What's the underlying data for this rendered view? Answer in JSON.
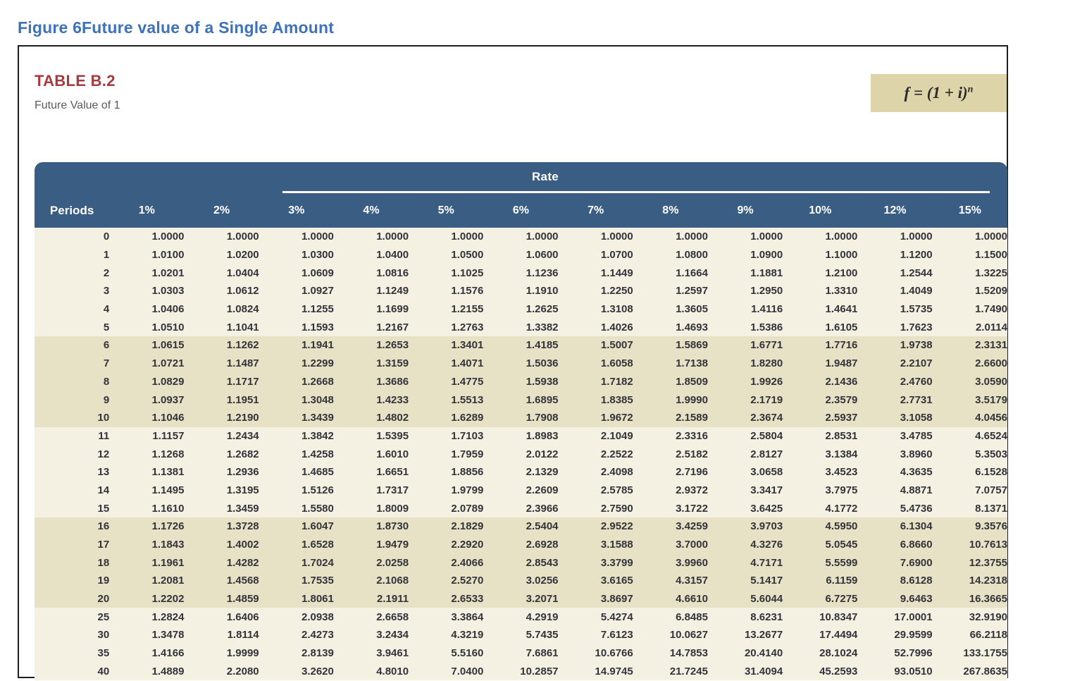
{
  "page": {
    "figure_title": "Figure 6Future value of a Single Amount"
  },
  "panel": {
    "table_label": "TABLE B.2",
    "table_subtitle": "Future Value of 1",
    "formula_base": "f = (1 + i)",
    "formula_exponent": "n"
  },
  "table": {
    "group_header": "Rate",
    "columns": [
      "Periods",
      "1%",
      "2%",
      "3%",
      "4%",
      "5%",
      "6%",
      "7%",
      "8%",
      "9%",
      "10%",
      "12%",
      "15%"
    ],
    "shaded_periods": [
      "6",
      "7",
      "8",
      "9",
      "10",
      "16",
      "17",
      "18",
      "19",
      "20"
    ],
    "rows": [
      [
        "0",
        "1.0000",
        "1.0000",
        "1.0000",
        "1.0000",
        "1.0000",
        "1.0000",
        "1.0000",
        "1.0000",
        "1.0000",
        "1.0000",
        "1.0000",
        "1.0000"
      ],
      [
        "1",
        "1.0100",
        "1.0200",
        "1.0300",
        "1.0400",
        "1.0500",
        "1.0600",
        "1.0700",
        "1.0800",
        "1.0900",
        "1.1000",
        "1.1200",
        "1.1500"
      ],
      [
        "2",
        "1.0201",
        "1.0404",
        "1.0609",
        "1.0816",
        "1.1025",
        "1.1236",
        "1.1449",
        "1.1664",
        "1.1881",
        "1.2100",
        "1.2544",
        "1.3225"
      ],
      [
        "3",
        "1.0303",
        "1.0612",
        "1.0927",
        "1.1249",
        "1.1576",
        "1.1910",
        "1.2250",
        "1.2597",
        "1.2950",
        "1.3310",
        "1.4049",
        "1.5209"
      ],
      [
        "4",
        "1.0406",
        "1.0824",
        "1.1255",
        "1.1699",
        "1.2155",
        "1.2625",
        "1.3108",
        "1.3605",
        "1.4116",
        "1.4641",
        "1.5735",
        "1.7490"
      ],
      [
        "5",
        "1.0510",
        "1.1041",
        "1.1593",
        "1.2167",
        "1.2763",
        "1.3382",
        "1.4026",
        "1.4693",
        "1.5386",
        "1.6105",
        "1.7623",
        "2.0114"
      ],
      [
        "6",
        "1.0615",
        "1.1262",
        "1.1941",
        "1.2653",
        "1.3401",
        "1.4185",
        "1.5007",
        "1.5869",
        "1.6771",
        "1.7716",
        "1.9738",
        "2.3131"
      ],
      [
        "7",
        "1.0721",
        "1.1487",
        "1.2299",
        "1.3159",
        "1.4071",
        "1.5036",
        "1.6058",
        "1.7138",
        "1.8280",
        "1.9487",
        "2.2107",
        "2.6600"
      ],
      [
        "8",
        "1.0829",
        "1.1717",
        "1.2668",
        "1.3686",
        "1.4775",
        "1.5938",
        "1.7182",
        "1.8509",
        "1.9926",
        "2.1436",
        "2.4760",
        "3.0590"
      ],
      [
        "9",
        "1.0937",
        "1.1951",
        "1.3048",
        "1.4233",
        "1.5513",
        "1.6895",
        "1.8385",
        "1.9990",
        "2.1719",
        "2.3579",
        "2.7731",
        "3.5179"
      ],
      [
        "10",
        "1.1046",
        "1.2190",
        "1.3439",
        "1.4802",
        "1.6289",
        "1.7908",
        "1.9672",
        "2.1589",
        "2.3674",
        "2.5937",
        "3.1058",
        "4.0456"
      ],
      [
        "11",
        "1.1157",
        "1.2434",
        "1.3842",
        "1.5395",
        "1.7103",
        "1.8983",
        "2.1049",
        "2.3316",
        "2.5804",
        "2.8531",
        "3.4785",
        "4.6524"
      ],
      [
        "12",
        "1.1268",
        "1.2682",
        "1.4258",
        "1.6010",
        "1.7959",
        "2.0122",
        "2.2522",
        "2.5182",
        "2.8127",
        "3.1384",
        "3.8960",
        "5.3503"
      ],
      [
        "13",
        "1.1381",
        "1.2936",
        "1.4685",
        "1.6651",
        "1.8856",
        "2.1329",
        "2.4098",
        "2.7196",
        "3.0658",
        "3.4523",
        "4.3635",
        "6.1528"
      ],
      [
        "14",
        "1.1495",
        "1.3195",
        "1.5126",
        "1.7317",
        "1.9799",
        "2.2609",
        "2.5785",
        "2.9372",
        "3.3417",
        "3.7975",
        "4.8871",
        "7.0757"
      ],
      [
        "15",
        "1.1610",
        "1.3459",
        "1.5580",
        "1.8009",
        "2.0789",
        "2.3966",
        "2.7590",
        "3.1722",
        "3.6425",
        "4.1772",
        "5.4736",
        "8.1371"
      ],
      [
        "16",
        "1.1726",
        "1.3728",
        "1.6047",
        "1.8730",
        "2.1829",
        "2.5404",
        "2.9522",
        "3.4259",
        "3.9703",
        "4.5950",
        "6.1304",
        "9.3576"
      ],
      [
        "17",
        "1.1843",
        "1.4002",
        "1.6528",
        "1.9479",
        "2.2920",
        "2.6928",
        "3.1588",
        "3.7000",
        "4.3276",
        "5.0545",
        "6.8660",
        "10.7613"
      ],
      [
        "18",
        "1.1961",
        "1.4282",
        "1.7024",
        "2.0258",
        "2.4066",
        "2.8543",
        "3.3799",
        "3.9960",
        "4.7171",
        "5.5599",
        "7.6900",
        "12.3755"
      ],
      [
        "19",
        "1.2081",
        "1.4568",
        "1.7535",
        "2.1068",
        "2.5270",
        "3.0256",
        "3.6165",
        "4.3157",
        "5.1417",
        "6.1159",
        "8.6128",
        "14.2318"
      ],
      [
        "20",
        "1.2202",
        "1.4859",
        "1.8061",
        "2.1911",
        "2.6533",
        "3.2071",
        "3.8697",
        "4.6610",
        "5.6044",
        "6.7275",
        "9.6463",
        "16.3665"
      ],
      [
        "25",
        "1.2824",
        "1.6406",
        "2.0938",
        "2.6658",
        "3.3864",
        "4.2919",
        "5.4274",
        "6.8485",
        "8.6231",
        "10.8347",
        "17.0001",
        "32.9190"
      ],
      [
        "30",
        "1.3478",
        "1.8114",
        "2.4273",
        "3.2434",
        "4.3219",
        "5.7435",
        "7.6123",
        "10.0627",
        "13.2677",
        "17.4494",
        "29.9599",
        "66.2118"
      ],
      [
        "35",
        "1.4166",
        "1.9999",
        "2.8139",
        "3.9461",
        "5.5160",
        "7.6861",
        "10.6766",
        "14.7853",
        "20.4140",
        "28.1024",
        "52.7996",
        "133.1755"
      ],
      [
        "40",
        "1.4889",
        "2.2080",
        "3.2620",
        "4.8010",
        "7.0400",
        "10.2857",
        "14.9745",
        "21.7245",
        "31.4094",
        "45.2593",
        "93.0510",
        "267.8635"
      ]
    ]
  },
  "colors": {
    "header_bg": "#3a5d84",
    "band_bg": "#e7e1c6",
    "row_bg": "#f4f1e3",
    "title_blue": "#3f72b8",
    "label_red": "#a63a3d",
    "formula_bg": "#ddd5a9",
    "num_color": "#33333a"
  }
}
